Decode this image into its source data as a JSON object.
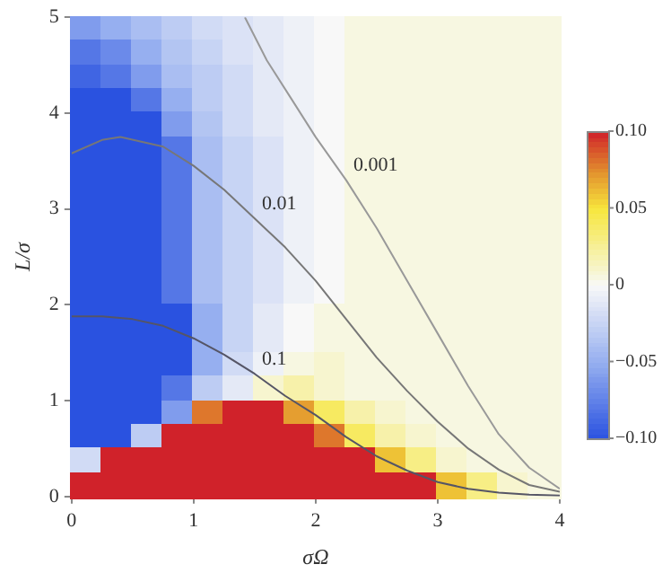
{
  "chart_data": {
    "type": "heatmap",
    "xlabel": "σΩ",
    "ylabel": "L/σ",
    "x": [
      0.125,
      0.375,
      0.625,
      0.875,
      1.125,
      1.375,
      1.625,
      1.875,
      2.125,
      2.375,
      2.625,
      2.875,
      3.125,
      3.375,
      3.625,
      3.875
    ],
    "xlim": [
      0,
      4
    ],
    "xticks": [
      0,
      1,
      2,
      3,
      4
    ],
    "ylim": [
      0,
      5
    ],
    "yticks": [
      0,
      1,
      2,
      3,
      4,
      5
    ],
    "clim": [
      -0.1,
      0.1
    ],
    "cticks": [
      {
        "value": 0.1,
        "label": "0.10"
      },
      {
        "value": 0.05,
        "label": "0.05"
      },
      0,
      {
        "value": -0.05,
        "label": "−0.05"
      },
      {
        "value": -0.1,
        "label": "−0.10"
      }
    ],
    "cells": [
      [
        -0.06,
        -0.05,
        -0.04,
        -0.03,
        -0.02,
        -0.015,
        -0.01,
        -0.005,
        0,
        0.005,
        0.005,
        0.005,
        0.005,
        0.005,
        0.005,
        0.005
      ],
      [
        -0.08,
        -0.07,
        -0.05,
        -0.035,
        -0.025,
        -0.015,
        -0.01,
        -0.005,
        0,
        0.005,
        0.005,
        0.005,
        0.005,
        0.005,
        0.005,
        0.005
      ],
      [
        -0.09,
        -0.08,
        -0.06,
        -0.04,
        -0.03,
        -0.02,
        -0.01,
        -0.005,
        0,
        0.005,
        0.005,
        0.005,
        0.005,
        0.005,
        0.005,
        0.005
      ],
      [
        -0.1,
        -0.1,
        -0.08,
        -0.05,
        -0.03,
        -0.02,
        -0.01,
        -0.005,
        0,
        0.005,
        0.005,
        0.005,
        0.005,
        0.005,
        0.005,
        0.005
      ],
      [
        -0.1,
        -0.1,
        -0.1,
        -0.06,
        -0.035,
        -0.02,
        -0.01,
        -0.005,
        0,
        0.005,
        0.005,
        0.005,
        0.005,
        0.005,
        0.005,
        0.005
      ],
      [
        -0.1,
        -0.1,
        -0.1,
        -0.08,
        -0.04,
        -0.025,
        -0.015,
        -0.005,
        0,
        0.005,
        0.005,
        0.005,
        0.005,
        0.005,
        0.005,
        0.005
      ],
      [
        -0.1,
        -0.1,
        -0.1,
        -0.08,
        -0.04,
        -0.025,
        -0.015,
        -0.005,
        0,
        0.005,
        0.005,
        0.005,
        0.005,
        0.005,
        0.005,
        0.005
      ],
      [
        -0.1,
        -0.1,
        -0.1,
        -0.08,
        -0.04,
        -0.025,
        -0.015,
        -0.005,
        0,
        0.005,
        0.005,
        0.005,
        0.005,
        0.005,
        0.005,
        0.005
      ],
      [
        -0.1,
        -0.1,
        -0.1,
        -0.08,
        -0.04,
        -0.025,
        -0.015,
        -0.005,
        0,
        0.005,
        0.005,
        0.005,
        0.005,
        0.005,
        0.005,
        0.005
      ],
      [
        -0.1,
        -0.1,
        -0.1,
        -0.08,
        -0.04,
        -0.025,
        -0.015,
        -0.005,
        0,
        0.005,
        0.005,
        0.005,
        0.005,
        0.005,
        0.005,
        0.005
      ],
      [
        -0.1,
        -0.1,
        -0.1,
        -0.08,
        -0.04,
        -0.025,
        -0.015,
        -0.005,
        0,
        0.005,
        0.005,
        0.005,
        0.005,
        0.005,
        0.005,
        0.005
      ],
      [
        -0.1,
        -0.1,
        -0.1,
        -0.08,
        -0.04,
        -0.025,
        -0.015,
        -0.005,
        0,
        0.005,
        0.005,
        0.005,
        0.005,
        0.005,
        0.005,
        0.005
      ],
      [
        -0.1,
        -0.1,
        -0.1,
        -0.1,
        -0.05,
        -0.025,
        -0.01,
        0,
        0.005,
        0.005,
        0.005,
        0.005,
        0.005,
        0.005,
        0.005,
        0.005
      ],
      [
        -0.1,
        -0.1,
        -0.1,
        -0.1,
        -0.05,
        -0.025,
        -0.01,
        0,
        0.005,
        0.005,
        0.005,
        0.005,
        0.005,
        0.005,
        0.005,
        0.005
      ],
      [
        -0.1,
        -0.1,
        -0.1,
        -0.1,
        -0.05,
        -0.02,
        -0.005,
        0.005,
        0.01,
        0.005,
        0.005,
        0.005,
        0.005,
        0.005,
        0.005,
        0.005
      ],
      [
        -0.1,
        -0.1,
        -0.1,
        -0.08,
        -0.03,
        -0.01,
        0.01,
        0.02,
        0.01,
        0.005,
        0.005,
        0.005,
        0.005,
        0.005,
        0.005,
        0.005
      ],
      [
        -0.1,
        -0.1,
        -0.1,
        -0.06,
        0.08,
        0.1,
        0.1,
        0.07,
        0.04,
        0.02,
        0.01,
        0.005,
        0.005,
        0.005,
        0.005,
        0.005
      ],
      [
        -0.1,
        -0.1,
        -0.03,
        0.1,
        0.1,
        0.1,
        0.1,
        0.1,
        0.08,
        0.04,
        0.02,
        0.01,
        0.005,
        0.005,
        0.005,
        0.005
      ],
      [
        -0.02,
        0.1,
        0.1,
        0.1,
        0.1,
        0.1,
        0.1,
        0.1,
        0.1,
        0.1,
        0.06,
        0.03,
        0.01,
        0.005,
        0.005,
        0.005
      ],
      [
        0.1,
        0.1,
        0.1,
        0.1,
        0.1,
        0.1,
        0.1,
        0.1,
        0.1,
        0.1,
        0.1,
        0.1,
        0.06,
        0.03,
        0.01,
        0.005
      ]
    ],
    "series": [
      {
        "type": "line",
        "name": "0.1",
        "color": "#555566",
        "x": [
          0,
          0.25,
          0.5,
          0.75,
          1,
          1.25,
          1.5,
          1.75,
          2,
          2.25,
          2.5,
          2.75,
          3,
          3.25,
          3.5,
          3.75,
          4
        ],
        "values": [
          1.88,
          1.88,
          1.85,
          1.78,
          1.65,
          1.48,
          1.28,
          1.05,
          0.85,
          0.62,
          0.42,
          0.27,
          0.15,
          0.08,
          0.04,
          0.02,
          0.01
        ]
      },
      {
        "type": "line",
        "name": "0.01",
        "color": "#777777",
        "x": [
          0,
          0.25,
          0.4,
          0.75,
          1,
          1.25,
          1.5,
          1.75,
          2,
          2.25,
          2.5,
          2.75,
          3,
          3.25,
          3.5,
          3.75,
          4
        ],
        "values": [
          3.58,
          3.72,
          3.75,
          3.65,
          3.45,
          3.2,
          2.9,
          2.6,
          2.25,
          1.85,
          1.45,
          1.1,
          0.78,
          0.5,
          0.28,
          0.12,
          0.05
        ]
      },
      {
        "type": "line",
        "name": "0.001",
        "color": "#999999",
        "x": [
          1.42,
          1.6,
          1.8,
          2,
          2.25,
          2.5,
          2.75,
          3,
          3.25,
          3.5,
          3.75,
          4
        ],
        "values": [
          5,
          4.55,
          4.15,
          3.75,
          3.3,
          2.8,
          2.25,
          1.7,
          1.15,
          0.65,
          0.3,
          0.08
        ]
      }
    ]
  }
}
